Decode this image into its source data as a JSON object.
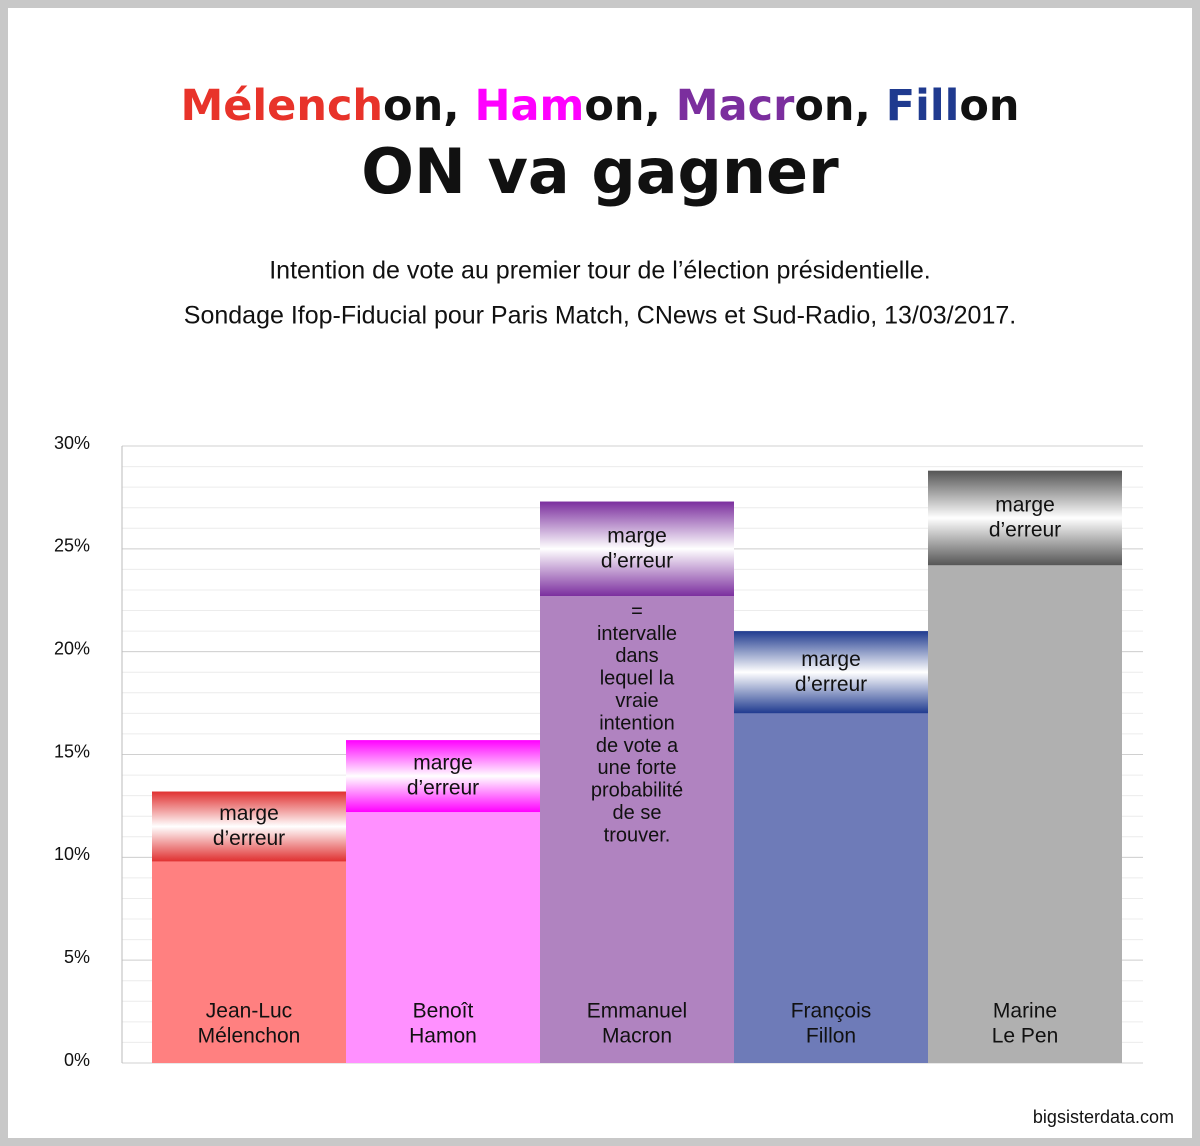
{
  "chart_data": {
    "type": "bar",
    "title_parts": [
      {
        "text": "Mélench",
        "color": "#e8332a"
      },
      {
        "text": "on, ",
        "color": "#111111"
      },
      {
        "text": "Ham",
        "color": "#ff00ff"
      },
      {
        "text": "on, ",
        "color": "#111111"
      },
      {
        "text": "Macr",
        "color": "#7b2e9e"
      },
      {
        "text": "on, ",
        "color": "#111111"
      },
      {
        "text": "Fill",
        "color": "#1f3a8f"
      },
      {
        "text": "on",
        "color": "#111111"
      }
    ],
    "title": "ON va gagner",
    "subtitle": [
      "Intention de vote au premier tour de l’élection présidentielle.",
      "Sondage Ifop-Fiducial pour Paris Match, CNews et Sud-Radio, 13/03/2017."
    ],
    "categories": [
      [
        "Jean-Luc",
        "Mélenchon"
      ],
      [
        "Benoît",
        "Hamon"
      ],
      [
        "Emmanuel",
        "Macron"
      ],
      [
        "François",
        "Fillon"
      ],
      [
        "Marine",
        "Le Pen"
      ]
    ],
    "values": [
      9.8,
      12.2,
      22.7,
      17.0,
      24.2
    ],
    "margins": [
      3.4,
      3.5,
      4.6,
      4.0,
      4.6
    ],
    "colors": [
      "#ff8080",
      "#ff90ff",
      "#b083c0",
      "#6e7bb8",
      "#b0b0b0"
    ],
    "margin_colors": [
      "#e03030",
      "#ff00ff",
      "#7b2e9e",
      "#1f3a8f",
      "#555555"
    ],
    "margin_label": [
      "marge",
      "d’erreur"
    ],
    "annotation": [
      "=",
      "intervalle",
      "dans",
      "lequel la",
      "vraie",
      "intention",
      "de vote a",
      "une forte",
      "probabilité",
      "de se",
      "trouver."
    ],
    "annotation_category": 2,
    "ylim": [
      0,
      30
    ],
    "yticks": [
      {
        "value": 0,
        "label": "0%"
      },
      {
        "value": 5,
        "label": "5%"
      },
      {
        "value": 10,
        "label": "10%"
      },
      {
        "value": 15,
        "label": "15%"
      },
      {
        "value": 20,
        "label": "20%"
      },
      {
        "value": 25,
        "label": "25%"
      },
      {
        "value": 30,
        "label": "30%"
      }
    ],
    "grid": true,
    "minor_grid_step": 1,
    "source": "bigsisterdata.com"
  }
}
